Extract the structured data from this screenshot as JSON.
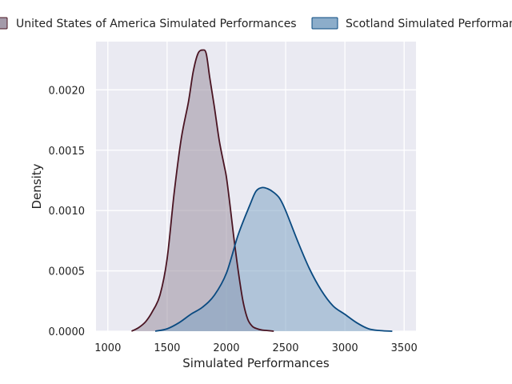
{
  "chart_data": {
    "type": "area",
    "title": "",
    "xlabel": "Simulated Performances",
    "ylabel": "Density",
    "xlim": [
      900,
      3600
    ],
    "ylim": [
      0,
      0.0024
    ],
    "x_ticks": [
      1000,
      1500,
      2000,
      2500,
      3000,
      3500
    ],
    "x_tick_labels": [
      "1000",
      "1500",
      "2000",
      "2500",
      "3000",
      "3500"
    ],
    "y_ticks": [
      0,
      0.0005,
      0.001,
      0.0015,
      0.002
    ],
    "y_tick_labels": [
      "0.0000",
      "0.0005",
      "0.0010",
      "0.0015",
      "0.0020"
    ],
    "grid": true,
    "legend_position": "top",
    "series": [
      {
        "name": "United States of America Simulated Performances",
        "line_color": "#4a1422",
        "fill_color": "#9a8fa0",
        "x": [
          1200,
          1260,
          1320,
          1380,
          1440,
          1500,
          1560,
          1620,
          1680,
          1720,
          1760,
          1800,
          1830,
          1860,
          1900,
          1940,
          1980,
          2000,
          2030,
          2060,
          2100,
          2140,
          2180,
          2220,
          2260,
          2300,
          2350,
          2400
        ],
        "y": [
          0.0,
          3e-05,
          8e-05,
          0.00017,
          0.0003,
          0.0006,
          0.00115,
          0.0016,
          0.0019,
          0.00215,
          0.0023,
          0.00233,
          0.0023,
          0.0021,
          0.00185,
          0.00158,
          0.00138,
          0.00128,
          0.00105,
          0.0008,
          0.0005,
          0.00025,
          0.0001,
          4e-05,
          2e-05,
          1e-05,
          5e-06,
          0.0
        ]
      },
      {
        "name": "Scotland Simulated Performances",
        "line_color": "#0a4a80",
        "fill_color": "#7fa4c4",
        "x": [
          1400,
          1500,
          1600,
          1700,
          1800,
          1900,
          2000,
          2100,
          2200,
          2250,
          2300,
          2350,
          2400,
          2450,
          2500,
          2600,
          2700,
          2800,
          2900,
          3000,
          3100,
          3200,
          3300,
          3400
        ],
        "y": [
          0.0,
          2e-05,
          7e-05,
          0.00014,
          0.0002,
          0.0003,
          0.00048,
          0.0008,
          0.00105,
          0.00116,
          0.00119,
          0.00118,
          0.00115,
          0.0011,
          0.001,
          0.00075,
          0.00052,
          0.00034,
          0.00021,
          0.00014,
          7e-05,
          2e-05,
          5e-06,
          0.0
        ]
      }
    ]
  }
}
